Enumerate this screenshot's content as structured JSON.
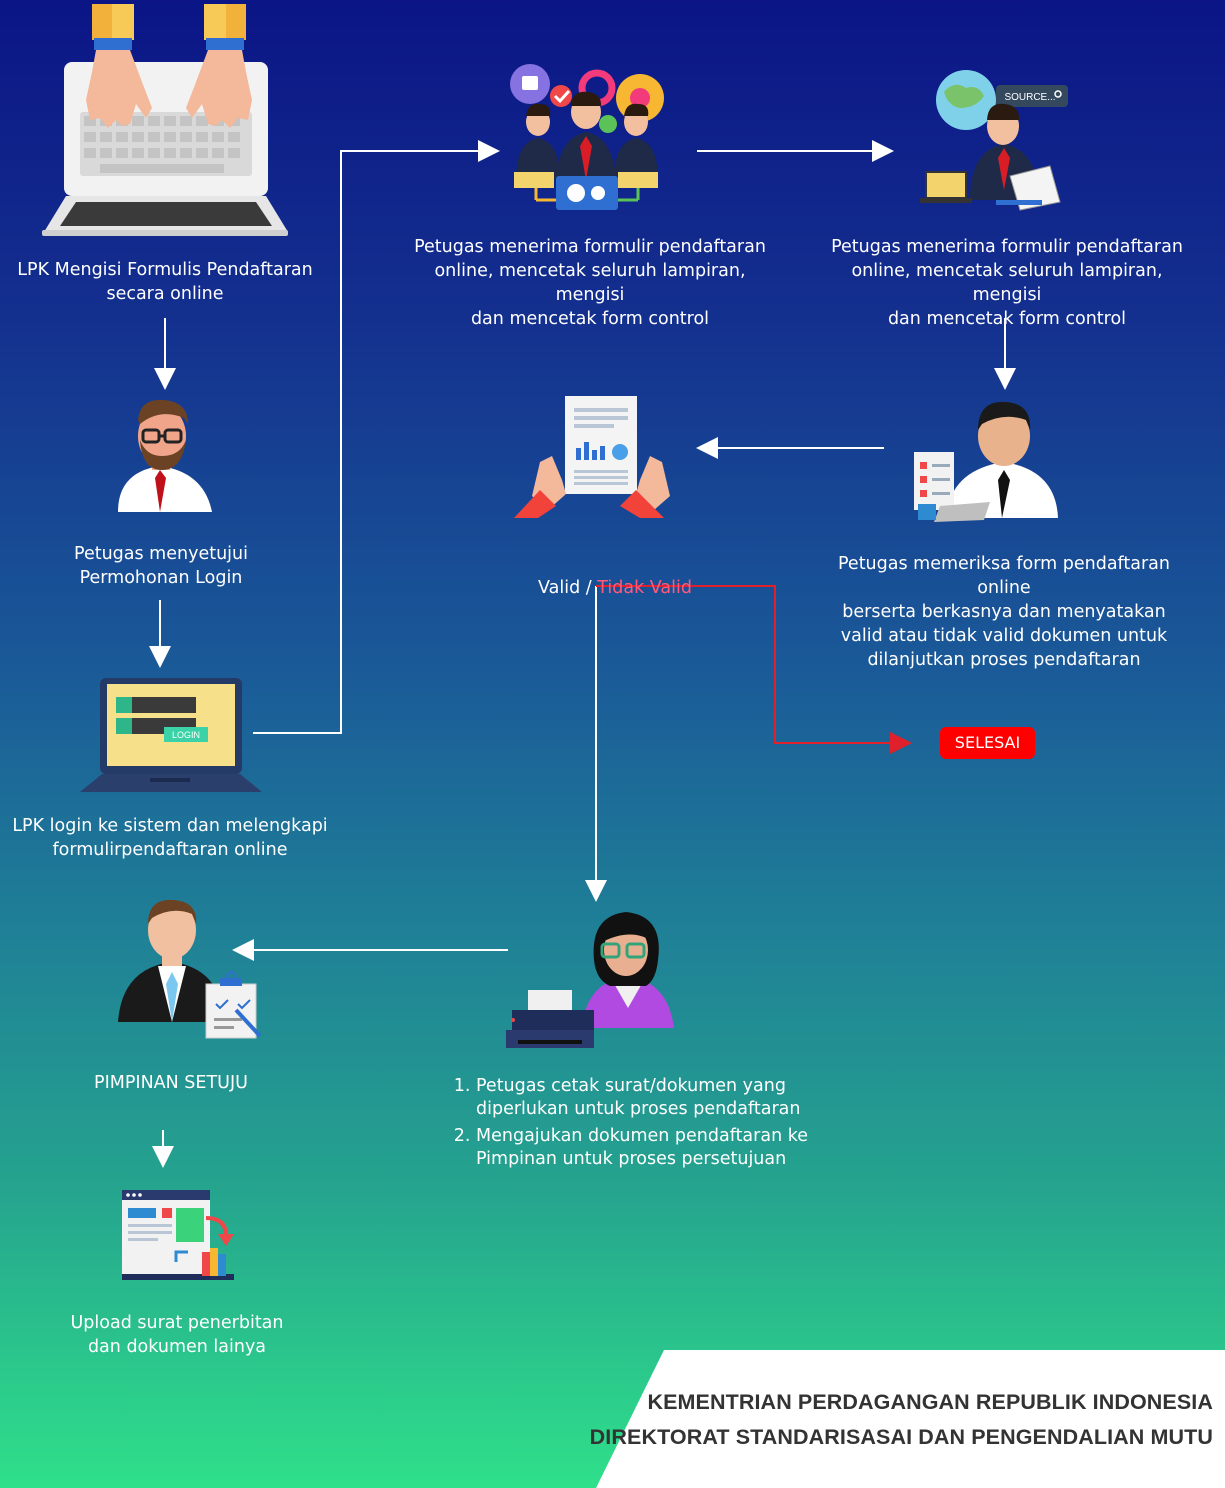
{
  "steps": {
    "lpk_fill_form": "LPK Mengisi Formulis Pendaftaran\nsecara online",
    "officer_approve_login": "Petugas menyetujui\nPermohonan Login",
    "lpk_login": "LPK login ke sistem dan melengkapi\nformulirpendaftaran online",
    "officer_receive_1": "Petugas menerima formulir pendaftaran\nonline, mencetak seluruh lampiran, mengisi\ndan mencetak form control",
    "officer_receive_2": "Petugas menerima formulir pendaftaran\nonline, mencetak seluruh lampiran, mengisi\ndan mencetak form control",
    "officer_check": "Petugas memeriksa form pendaftaran online\nberserta berkasnya dan menyatakan\nvalid atau tidak valid dokumen untuk\ndilanjutkan proses pendaftaran",
    "valid_label": "Valid",
    "valid_separator": " / ",
    "invalid_label": "Tidak Valid",
    "end_label": "SELESAI",
    "print_steps": [
      "Petugas cetak surat/dokumen yang\ndiperlukan untuk proses pendaftaran",
      "Mengajukan dokumen pendaftaran ke\nPimpinan untuk proses persetujuan"
    ],
    "leader_approve": "PIMPINAN SETUJU",
    "upload": "Upload surat penerbitan\ndan dokumen lainya"
  },
  "icons": {
    "login_button_text": "LOGIN",
    "search_text": "SOURCE..."
  },
  "footer": {
    "line1": "KEMENTRIAN PERDAGANGAN REPUBLIK INDONESIA",
    "line2": "DIREKTORAT STANDARISASAI DAN PENGENDALIAN MUTU"
  },
  "colors": {
    "invalid": "#ff5a7a",
    "end_button": "#ff0000",
    "invalid_path": "#e0202a",
    "arrow": "#ffffff"
  }
}
